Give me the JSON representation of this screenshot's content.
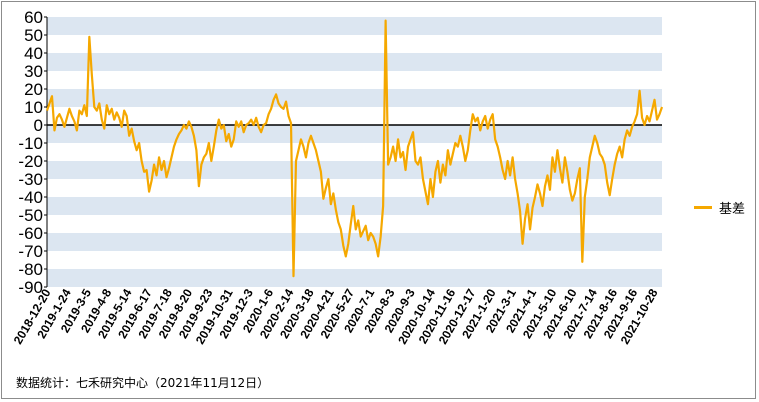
{
  "chart_data": {
    "type": "line",
    "title": "",
    "xlabel": "",
    "ylabel": "",
    "ylim": [
      -90,
      60
    ],
    "yticks": [
      60,
      50,
      40,
      30,
      20,
      10,
      0,
      -10,
      -20,
      -30,
      -40,
      -50,
      -60,
      -70,
      -80,
      -90
    ],
    "grid": "alternating horizontal bands",
    "legend_position": "right",
    "x_tick_labels": [
      "2018-12-20",
      "2019-1-24",
      "2019-3-5",
      "2019-4-8",
      "2019-5-14",
      "2019-6-17",
      "2019-7-18",
      "2019-8-20",
      "2019-9-23",
      "2019-10-31",
      "2019-12-3",
      "2020-1-6",
      "2020-2-14",
      "2020-3-18",
      "2020-4-21",
      "2020-5-27",
      "2020-7-1",
      "2020-8-3",
      "2020-9-3",
      "2020-10-14",
      "2020-11-16",
      "2020-12-17",
      "2021-1-20",
      "2021-3-1",
      "2021-4-1",
      "2021-5-10",
      "2021-6-10",
      "2021-7-14",
      "2021-8-16",
      "2021-9-16",
      "2021-10-28"
    ],
    "colors": {
      "series": "#f5a800",
      "band": "#dce6f1",
      "zero_line": "#000000"
    },
    "series": [
      {
        "name": "基差",
        "values": [
          8,
          12,
          16,
          -3,
          4,
          6,
          3,
          -1,
          4,
          9,
          5,
          2,
          -3,
          8,
          6,
          11,
          5,
          49,
          28,
          10,
          8,
          12,
          3,
          -2,
          11,
          6,
          9,
          3,
          7,
          4,
          -1,
          8,
          5,
          -6,
          -2,
          -9,
          -14,
          -10,
          -20,
          -26,
          -25,
          -37,
          -31,
          -22,
          -28,
          -18,
          -25,
          -20,
          -29,
          -24,
          -18,
          -12,
          -8,
          -5,
          -3,
          0,
          -2,
          2,
          -1,
          -6,
          -14,
          -34,
          -22,
          -18,
          -16,
          -10,
          -20,
          -12,
          -3,
          3,
          -2,
          0,
          -9,
          -5,
          -12,
          -8,
          2,
          -1,
          2,
          -4,
          0,
          1,
          3,
          0,
          4,
          -1,
          -4,
          0,
          1,
          6,
          9,
          14,
          17,
          12,
          10,
          9,
          13,
          5,
          1,
          -84,
          -20,
          -14,
          -8,
          -12,
          -18,
          -10,
          -6,
          -10,
          -14,
          -20,
          -26,
          -41,
          -35,
          -30,
          -44,
          -38,
          -47,
          -54,
          -58,
          -67,
          -73,
          -66,
          -55,
          -45,
          -58,
          -53,
          -62,
          -59,
          -56,
          -64,
          -60,
          -62,
          -66,
          -73,
          -62,
          -45,
          58,
          -22,
          -18,
          -12,
          -20,
          -8,
          -18,
          -15,
          -25,
          -12,
          -8,
          -4,
          -20,
          -22,
          -18,
          -30,
          -37,
          -44,
          -30,
          -40,
          -26,
          -20,
          -32,
          -22,
          -28,
          -14,
          -22,
          -16,
          -10,
          -12,
          -6,
          -12,
          -20,
          -14,
          -3,
          6,
          2,
          4,
          -3,
          2,
          5,
          -2,
          3,
          6,
          -8,
          -12,
          -18,
          -25,
          -30,
          -20,
          -28,
          -18,
          -30,
          -38,
          -48,
          -66,
          -52,
          -44,
          -58,
          -46,
          -40,
          -33,
          -38,
          -45,
          -34,
          -28,
          -36,
          -18,
          -26,
          -14,
          -24,
          -32,
          -18,
          -26,
          -36,
          -42,
          -38,
          -30,
          -24,
          -76,
          -40,
          -30,
          -18,
          -12,
          -6,
          -10,
          -16,
          -18,
          -22,
          -32,
          -39,
          -30,
          -22,
          -16,
          -12,
          -18,
          -8,
          -3,
          -6,
          -1,
          2,
          6,
          19,
          4,
          0,
          5,
          2,
          8,
          14,
          3,
          6,
          10
        ]
      }
    ]
  },
  "source_note": "数据统计：七禾研究中心（2021年11月12日）"
}
